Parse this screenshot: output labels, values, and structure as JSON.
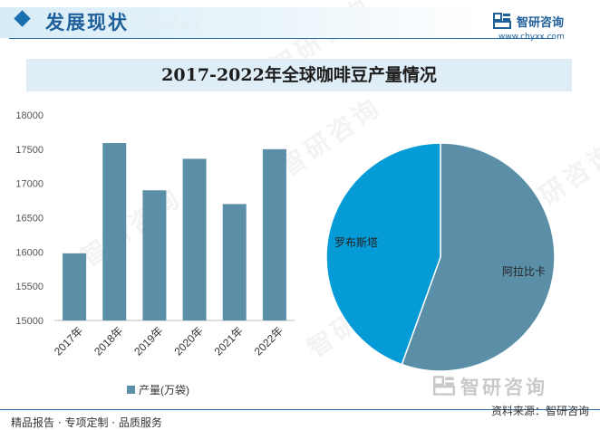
{
  "header": {
    "section_title": "发展现状",
    "section_subtitle": "ent status",
    "brand_name": "智研咨询",
    "brand_url": "www.chyxx.com"
  },
  "chart_title": "2017-2022年全球咖啡豆产量情况",
  "chart_data": [
    {
      "type": "bar",
      "categories": [
        "2017年",
        "2018年",
        "2019年",
        "2020年",
        "2021年",
        "2022年"
      ],
      "series": [
        {
          "name": "产量(万袋)",
          "values": [
            15980,
            17590,
            16900,
            17360,
            16700,
            17500
          ]
        }
      ],
      "ylim": [
        15000,
        18000
      ],
      "yticks": [
        15000,
        15500,
        16000,
        16500,
        17000,
        17500,
        18000
      ],
      "color": "#5b8fa8"
    },
    {
      "type": "pie",
      "slices": [
        {
          "label": "阿拉比卡",
          "value": 55.5,
          "color": "#5b8fa8"
        },
        {
          "label": "罗布斯塔",
          "value": 44.5,
          "color": "#049bd6"
        }
      ]
    }
  ],
  "watermark": "智研咨询",
  "footer": {
    "left": "精品报告 · 专项定制 · 品质服务",
    "right": "资料来源：智研咨询"
  }
}
